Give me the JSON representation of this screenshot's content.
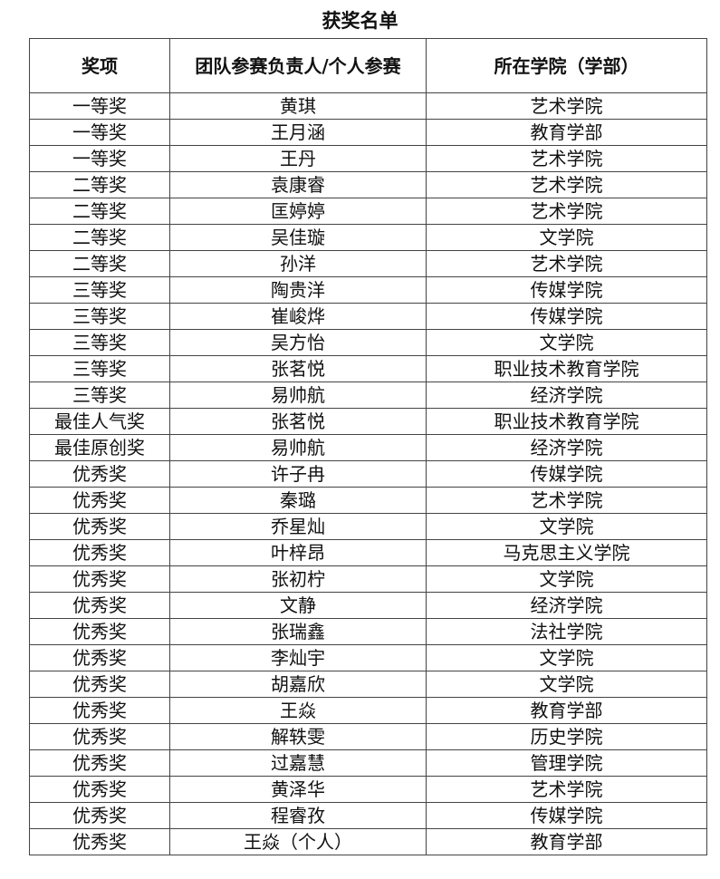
{
  "title": "获奖名单",
  "table": {
    "headers": [
      "奖项",
      "团队参赛负责人/个人参赛",
      "所在学院（学部）"
    ],
    "rows": [
      [
        "一等奖",
        "黄琪",
        "艺术学院"
      ],
      [
        "一等奖",
        "王月涵",
        "教育学部"
      ],
      [
        "一等奖",
        "王丹",
        "艺术学院"
      ],
      [
        "二等奖",
        "袁康睿",
        "艺术学院"
      ],
      [
        "二等奖",
        "匡婷婷",
        "艺术学院"
      ],
      [
        "二等奖",
        "吴佳璇",
        "文学院"
      ],
      [
        "二等奖",
        "孙洋",
        "艺术学院"
      ],
      [
        "三等奖",
        "陶贵洋",
        "传媒学院"
      ],
      [
        "三等奖",
        "崔峻烨",
        "传媒学院"
      ],
      [
        "三等奖",
        "吴方怡",
        "文学院"
      ],
      [
        "三等奖",
        "张茗悦",
        "职业技术教育学院"
      ],
      [
        "三等奖",
        "易帅航",
        "经济学院"
      ],
      [
        "最佳人气奖",
        "张茗悦",
        "职业技术教育学院"
      ],
      [
        "最佳原创奖",
        "易帅航",
        "经济学院"
      ],
      [
        "优秀奖",
        "许子冉",
        "传媒学院"
      ],
      [
        "优秀奖",
        "秦璐",
        "艺术学院"
      ],
      [
        "优秀奖",
        "乔星灿",
        "文学院"
      ],
      [
        "优秀奖",
        "叶梓昂",
        "马克思主义学院"
      ],
      [
        "优秀奖",
        "张初柠",
        "文学院"
      ],
      [
        "优秀奖",
        "文静",
        "经济学院"
      ],
      [
        "优秀奖",
        "张瑞鑫",
        "法社学院"
      ],
      [
        "优秀奖",
        "李灿宇",
        "文学院"
      ],
      [
        "优秀奖",
        "胡嘉欣",
        "文学院"
      ],
      [
        "优秀奖",
        "王焱",
        "教育学部"
      ],
      [
        "优秀奖",
        "解轶雯",
        "历史学院"
      ],
      [
        "优秀奖",
        "过嘉慧",
        "管理学院"
      ],
      [
        "优秀奖",
        "黄泽华",
        "艺术学院"
      ],
      [
        "优秀奖",
        "程睿孜",
        "传媒学院"
      ],
      [
        "优秀奖",
        "王焱（个人）",
        "教育学部"
      ]
    ]
  }
}
